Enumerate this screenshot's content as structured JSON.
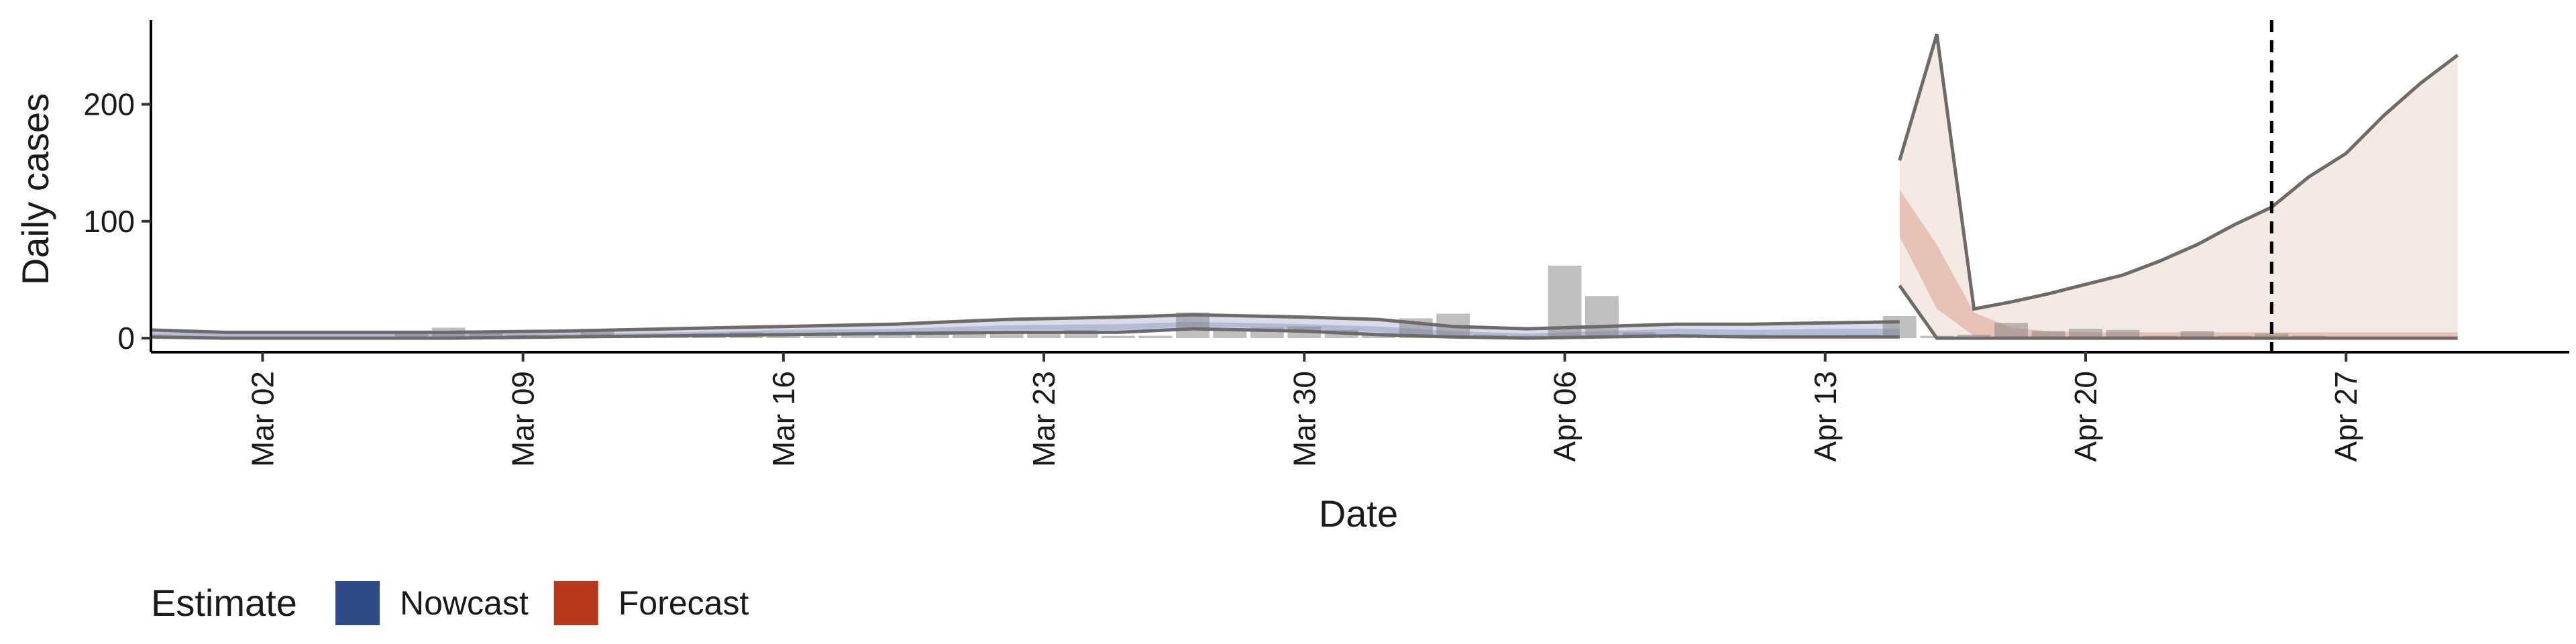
{
  "chart_data": {
    "type": "area",
    "xlabel": "Date",
    "ylabel": "Daily cases",
    "x_range": [
      "2020-02-28",
      "2020-05-03"
    ],
    "ylim": [
      -12,
      272
    ],
    "y_ticks": [
      0,
      100,
      200
    ],
    "x_ticks": [
      {
        "date": "2020-03-02",
        "label": "Mar 02"
      },
      {
        "date": "2020-03-09",
        "label": "Mar 09"
      },
      {
        "date": "2020-03-16",
        "label": "Mar 16"
      },
      {
        "date": "2020-03-23",
        "label": "Mar 23"
      },
      {
        "date": "2020-03-30",
        "label": "Mar 30"
      },
      {
        "date": "2020-04-06",
        "label": "Apr 06"
      },
      {
        "date": "2020-04-13",
        "label": "Apr 13"
      },
      {
        "date": "2020-04-20",
        "label": "Apr 20"
      },
      {
        "date": "2020-04-27",
        "label": "Apr 27"
      }
    ],
    "grid": false,
    "reference_line": {
      "date": "2020-04-25",
      "style": "dashed"
    },
    "reported_cases": {
      "color": "#808080",
      "points": [
        [
          "2020-03-01",
          0
        ],
        [
          "2020-03-02",
          1
        ],
        [
          "2020-03-03",
          0
        ],
        [
          "2020-03-04",
          1
        ],
        [
          "2020-03-05",
          1
        ],
        [
          "2020-03-06",
          6
        ],
        [
          "2020-03-07",
          9
        ],
        [
          "2020-03-08",
          4
        ],
        [
          "2020-03-09",
          3
        ],
        [
          "2020-03-10",
          2
        ],
        [
          "2020-03-11",
          8
        ],
        [
          "2020-03-12",
          2
        ],
        [
          "2020-03-13",
          3
        ],
        [
          "2020-03-14",
          4
        ],
        [
          "2020-03-15",
          5
        ],
        [
          "2020-03-16",
          3
        ],
        [
          "2020-03-17",
          4
        ],
        [
          "2020-03-18",
          5
        ],
        [
          "2020-03-19",
          4
        ],
        [
          "2020-03-20",
          5
        ],
        [
          "2020-03-21",
          6
        ],
        [
          "2020-03-22",
          5
        ],
        [
          "2020-03-23",
          6
        ],
        [
          "2020-03-24",
          7
        ],
        [
          "2020-03-25",
          2
        ],
        [
          "2020-03-26",
          2
        ],
        [
          "2020-03-27",
          22
        ],
        [
          "2020-03-28",
          8
        ],
        [
          "2020-03-29",
          9
        ],
        [
          "2020-03-30",
          10
        ],
        [
          "2020-03-31",
          7
        ],
        [
          "2020-04-01",
          3
        ],
        [
          "2020-04-02",
          17
        ],
        [
          "2020-04-03",
          21
        ],
        [
          "2020-04-04",
          3
        ],
        [
          "2020-04-05",
          2
        ],
        [
          "2020-04-06",
          62
        ],
        [
          "2020-04-07",
          36
        ],
        [
          "2020-04-08",
          5
        ],
        [
          "2020-04-09",
          3
        ],
        [
          "2020-04-10",
          2
        ],
        [
          "2020-04-11",
          3
        ],
        [
          "2020-04-12",
          2
        ],
        [
          "2020-04-13",
          2
        ],
        [
          "2020-04-14",
          3
        ],
        [
          "2020-04-15",
          19
        ],
        [
          "2020-04-16",
          2
        ],
        [
          "2020-04-17",
          3
        ],
        [
          "2020-04-18",
          13
        ],
        [
          "2020-04-19",
          6
        ],
        [
          "2020-04-20",
          8
        ],
        [
          "2020-04-21",
          7
        ],
        [
          "2020-04-22",
          2
        ],
        [
          "2020-04-23",
          6
        ],
        [
          "2020-04-24",
          2
        ],
        [
          "2020-04-25",
          4
        ],
        [
          "2020-04-26",
          2
        ]
      ]
    },
    "series": [
      {
        "name": "Nowcast",
        "color": "#2e4a87",
        "band_color": "#d9dcec",
        "dates": [
          "2020-02-28",
          "2020-03-01",
          "2020-03-04",
          "2020-03-07",
          "2020-03-10",
          "2020-03-13",
          "2020-03-16",
          "2020-03-19",
          "2020-03-22",
          "2020-03-25",
          "2020-03-27",
          "2020-03-30",
          "2020-04-01",
          "2020-04-03",
          "2020-04-05",
          "2020-04-07",
          "2020-04-09",
          "2020-04-11",
          "2020-04-13",
          "2020-04-15"
        ],
        "upper": [
          7,
          5,
          5,
          5,
          6,
          8,
          10,
          12,
          16,
          18,
          20,
          18,
          16,
          10,
          8,
          10,
          12,
          12,
          13,
          14
        ],
        "lower": [
          1,
          0,
          0,
          0,
          1,
          2,
          3,
          4,
          5,
          5,
          8,
          6,
          3,
          1,
          0,
          1,
          2,
          1,
          1,
          1
        ],
        "inner_upper": [
          5,
          4,
          4,
          4,
          4,
          5,
          7,
          8,
          11,
          12,
          14,
          12,
          10,
          6,
          4,
          6,
          8,
          7,
          8,
          8
        ],
        "inner_lower": [
          2,
          1,
          1,
          1,
          2,
          3,
          4,
          5,
          7,
          7,
          10,
          8,
          5,
          2,
          1,
          2,
          3,
          2,
          2,
          2
        ]
      },
      {
        "name": "Forecast",
        "color": "#b5391a",
        "band_color": "#f5e9e3",
        "dates": [
          "2020-04-15",
          "2020-04-16",
          "2020-04-17",
          "2020-04-18",
          "2020-04-19",
          "2020-04-20",
          "2020-04-21",
          "2020-04-22",
          "2020-04-23",
          "2020-04-24",
          "2020-04-25",
          "2020-04-26",
          "2020-04-27",
          "2020-04-28",
          "2020-04-29",
          "2020-04-30"
        ],
        "upper": [
          152,
          260,
          25,
          31,
          38,
          46,
          54,
          66,
          80,
          97,
          112,
          138,
          158,
          190,
          218,
          242
        ],
        "lower": [
          45,
          0,
          0,
          0,
          0,
          0,
          0,
          0,
          0,
          0,
          0,
          0,
          0,
          0,
          0,
          0
        ],
        "inner_upper": [
          127,
          80,
          22,
          9,
          6,
          5,
          5,
          5,
          5,
          5,
          5,
          5,
          5,
          5,
          5,
          5
        ],
        "inner_lower": [
          87,
          25,
          2,
          1,
          1,
          1,
          1,
          1,
          1,
          1,
          1,
          1,
          1,
          1,
          1,
          1
        ]
      }
    ],
    "legend": {
      "title": "Estimate",
      "position": "bottom-left",
      "items": [
        {
          "label": "Nowcast",
          "color": "#2e4a87"
        },
        {
          "label": "Forecast",
          "color": "#b5391a"
        }
      ]
    }
  }
}
